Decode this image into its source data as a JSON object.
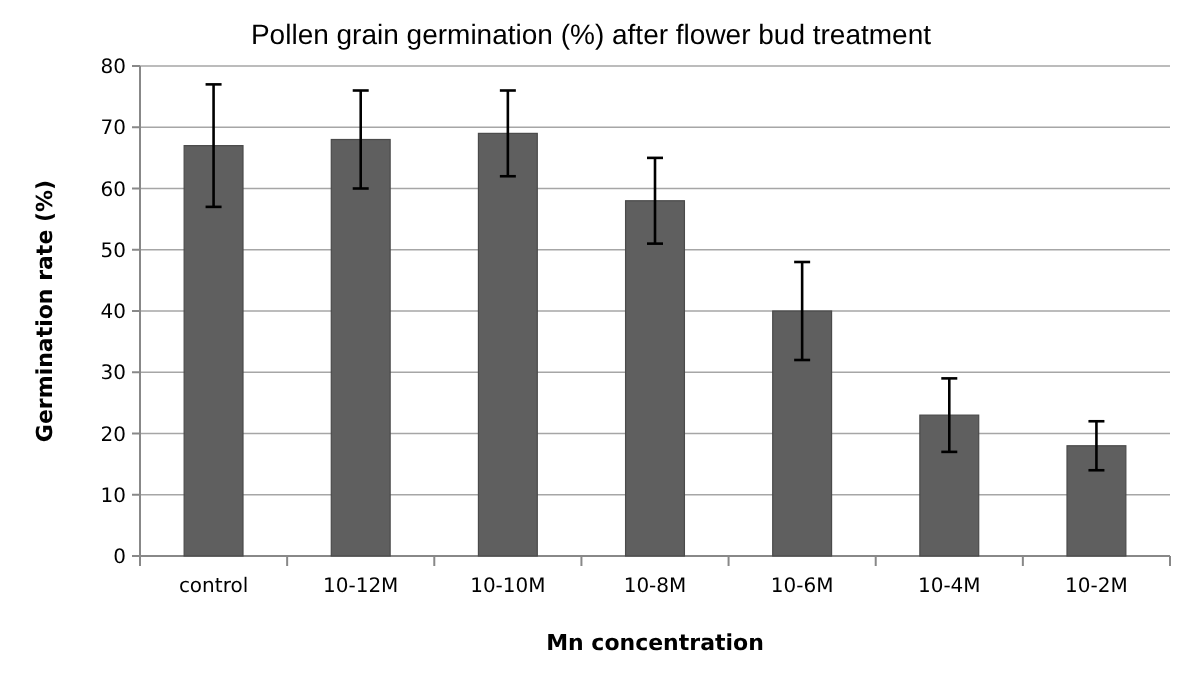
{
  "chart_data": {
    "type": "bar",
    "title": "Pollen grain germination (%) after flower bud treatment",
    "xlabel": "Mn concentration",
    "ylabel": "Germination rate (%)",
    "categories": [
      "control",
      "10-12M",
      "10-10M",
      "10-8M",
      "10-6M",
      "10-4M",
      "10-2M"
    ],
    "values": [
      67,
      68,
      69,
      58,
      40,
      23,
      18
    ],
    "errors": [
      10,
      8,
      7,
      7,
      8,
      6,
      4
    ],
    "color": "#5f5f5f",
    "ylim": [
      0,
      80
    ],
    "yticks": [
      0,
      10,
      20,
      30,
      40,
      50,
      60,
      70,
      80
    ],
    "grid": "y"
  }
}
